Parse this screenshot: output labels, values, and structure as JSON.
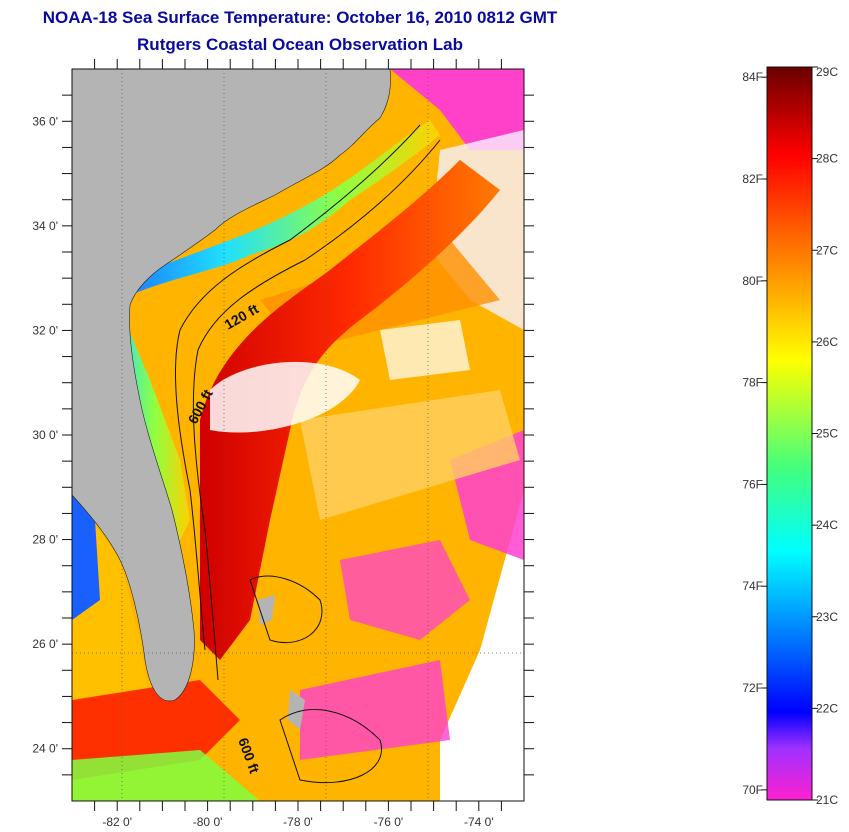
{
  "header": {
    "title": "NOAA-18 Sea Surface Temperature:  October 16, 2010 0812 GMT",
    "subtitle": "Rutgers Coastal Ocean Observation Lab"
  },
  "map": {
    "lat_labels": [
      "36 0'",
      "34 0'",
      "32 0'",
      "30 0'",
      "28 0'",
      "26 0'",
      "24 0'"
    ],
    "lon_labels": [
      "-82 0'",
      "-80 0'",
      "-78 0'",
      "-76 0'",
      "-74 0'"
    ],
    "contour_labels": [
      "120 ft",
      "600 ft",
      "600 ft"
    ],
    "land_color": "#b4b4b4"
  },
  "colorbar": {
    "fahrenheit_labels": [
      "84F",
      "82F",
      "80F",
      "78F",
      "76F",
      "74F",
      "72F",
      "70F"
    ],
    "celsius_labels": [
      "29C",
      "28C",
      "27C",
      "26C",
      "25C",
      "24C",
      "23C",
      "22C",
      "21C"
    ],
    "colors": [
      "#7a0000",
      "#ff0000",
      "#ff8000",
      "#ffff00",
      "#80ff40",
      "#00ffff",
      "#0080ff",
      "#0000ff",
      "#a040ff",
      "#ff20d0"
    ]
  }
}
